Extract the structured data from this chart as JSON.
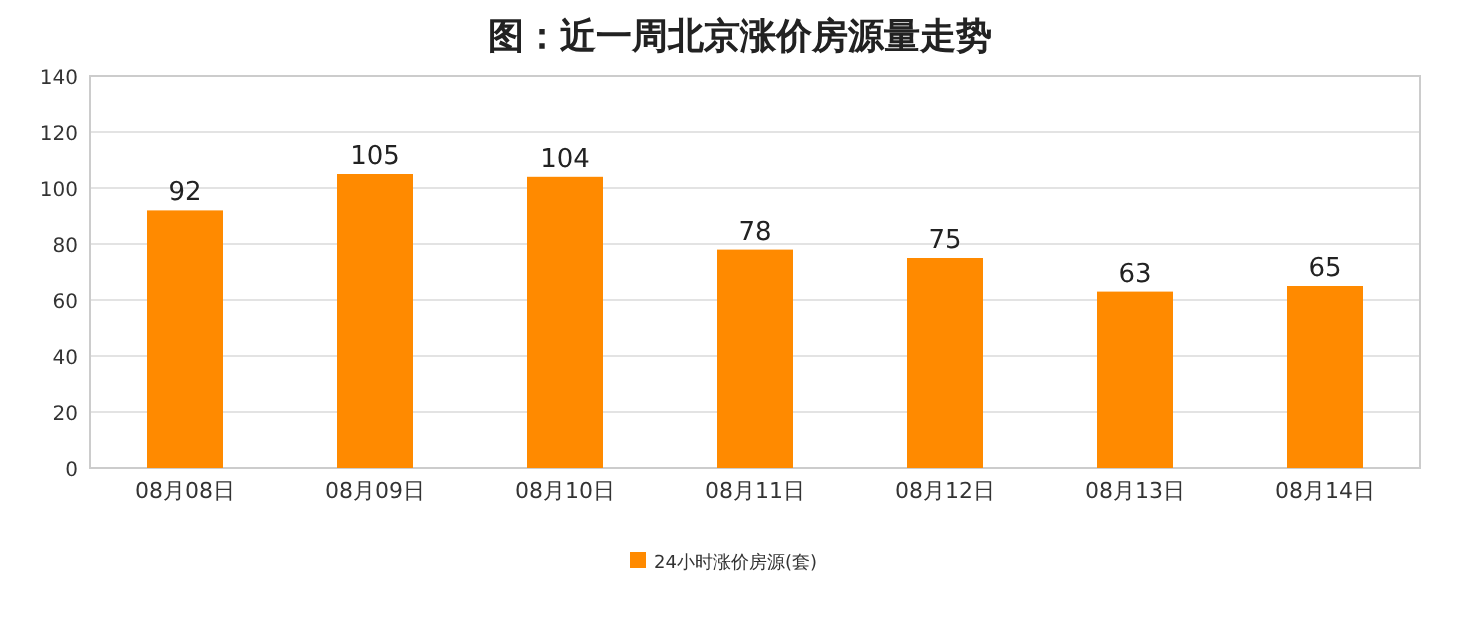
{
  "chart_data": {
    "type": "bar",
    "title": "图：近一周北京涨价房源量走势",
    "categories": [
      "08月08日",
      "08月09日",
      "08月10日",
      "08月11日",
      "08月12日",
      "08月13日",
      "08月14日"
    ],
    "series": [
      {
        "name": "24小时涨价房源(套)",
        "color": "#ff8a00",
        "values": [
          92,
          105,
          104,
          78,
          75,
          63,
          65
        ]
      }
    ],
    "ylim": [
      0,
      140
    ],
    "yticks": [
      0,
      20,
      40,
      60,
      80,
      100,
      120,
      140
    ],
    "grid": "y",
    "legend": "bottom",
    "data_labels": true
  }
}
